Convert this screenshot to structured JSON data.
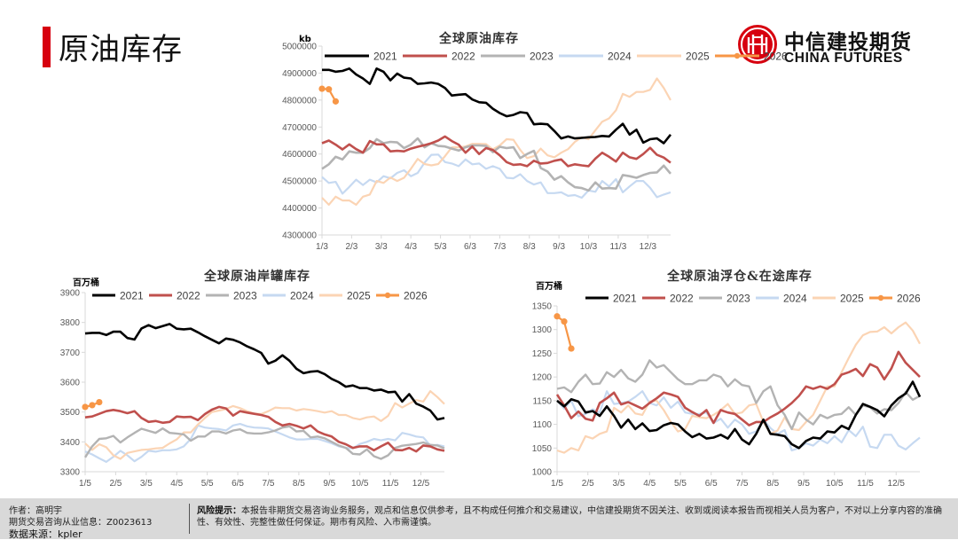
{
  "page": {
    "title": "原油库存"
  },
  "logo": {
    "name_cn": "中信建投期货",
    "name_en": "CHINA FUTURES",
    "icon": "citic-logo-icon",
    "brand_color": "#d7000f"
  },
  "series_colors": {
    "2021": "#000000",
    "2022": "#c0504d",
    "2023": "#b3b3b3",
    "2024": "#c6d9f1",
    "2025": "#fbd4b4",
    "2026": "#f79646"
  },
  "chart_data": [
    {
      "id": "global",
      "type": "line",
      "title": "全球原油库存",
      "ylabel": "kb",
      "xlabel": "",
      "ylim": [
        4300000,
        5000000
      ],
      "yticks": [
        "4300000",
        "4400000",
        "4500000",
        "4600000",
        "4700000",
        "4800000",
        "4900000",
        "5000000"
      ],
      "xticks": [
        "1/3",
        "2/3",
        "3/3",
        "4/3",
        "5/3",
        "6/3",
        "7/3",
        "8/3",
        "9/3",
        "10/3",
        "11/3",
        "12/3"
      ],
      "legend": [
        "2021",
        "2022",
        "2023",
        "2024",
        "2025",
        "2026"
      ],
      "legend_position": "top",
      "grid": false,
      "points_per_year": 52,
      "series": [
        {
          "name": "2021",
          "values": [
            4912000,
            4912000,
            4905000,
            4908000,
            4917000,
            4895000,
            4880000,
            4860000,
            4917000,
            4905000,
            4873000,
            4898000,
            4883000,
            4880000,
            4860000,
            4862000,
            4865000,
            4860000,
            4845000,
            4817000,
            4820000,
            4822000,
            4802000,
            4792000,
            4790000,
            4768000,
            4752000,
            4740000,
            4745000,
            4755000,
            4752000,
            4710000,
            4712000,
            4710000,
            4685000,
            4658000,
            4665000,
            4658000,
            4660000,
            4662000,
            4663000,
            4667000,
            4665000,
            4690000,
            4712000,
            4672000,
            4690000,
            4642000,
            4655000,
            4658000,
            4640000,
            4672000
          ]
        },
        {
          "name": "2022",
          "values": [
            4640000,
            4650000,
            4635000,
            4617000,
            4636000,
            4618000,
            4605000,
            4648000,
            4636000,
            4636000,
            4610000,
            4612000,
            4610000,
            4620000,
            4627000,
            4633000,
            4640000,
            4650000,
            4665000,
            4648000,
            4635000,
            4605000,
            4628000,
            4600000,
            4622000,
            4615000,
            4595000,
            4570000,
            4560000,
            4562000,
            4555000,
            4575000,
            4565000,
            4567000,
            4575000,
            4580000,
            4555000,
            4562000,
            4558000,
            4555000,
            4583000,
            4605000,
            4590000,
            4572000,
            4605000,
            4588000,
            4582000,
            4600000,
            4623000,
            4597000,
            4587000,
            4568000
          ]
        },
        {
          "name": "2023",
          "values": [
            4545000,
            4562000,
            4590000,
            4580000,
            4610000,
            4605000,
            4605000,
            4622000,
            4655000,
            4640000,
            4645000,
            4643000,
            4622000,
            4635000,
            4658000,
            4625000,
            4640000,
            4630000,
            4628000,
            4620000,
            4613000,
            4625000,
            4632000,
            4632000,
            4630000,
            4607000,
            4627000,
            4622000,
            4625000,
            4585000,
            4600000,
            4612000,
            4548000,
            4535000,
            4505000,
            4518000,
            4495000,
            4477000,
            4474000,
            4465000,
            4495000,
            4472000,
            4474000,
            4472000,
            4522000,
            4518000,
            4512000,
            4522000,
            4530000,
            4532000,
            4557000,
            4527000
          ]
        },
        {
          "name": "2024",
          "values": [
            4515000,
            4493000,
            4497000,
            4453000,
            4478000,
            4505000,
            4485000,
            4505000,
            4495000,
            4518000,
            4510000,
            4530000,
            4540000,
            4518000,
            4530000,
            4568000,
            4597000,
            4598000,
            4570000,
            4565000,
            4555000,
            4580000,
            4562000,
            4565000,
            4545000,
            4555000,
            4545000,
            4512000,
            4510000,
            4525000,
            4500000,
            4487000,
            4495000,
            4455000,
            4455000,
            4458000,
            4445000,
            4448000,
            4438000,
            4465000,
            4460000,
            4500000,
            4480000,
            4507000,
            4458000,
            4480000,
            4500000,
            4500000,
            4475000,
            4440000,
            4450000,
            4458000
          ]
        },
        {
          "name": "2025",
          "values": [
            4438000,
            4412000,
            4442000,
            4428000,
            4428000,
            4412000,
            4442000,
            4450000,
            4500000,
            4493000,
            4513000,
            4500000,
            4512000,
            4545000,
            4582000,
            4563000,
            4558000,
            4563000,
            4592000,
            4625000,
            4625000,
            4628000,
            4638000,
            4638000,
            4637000,
            4617000,
            4632000,
            4655000,
            4653000,
            4615000,
            4585000,
            4592000,
            4620000,
            4595000,
            4588000,
            4605000,
            4618000,
            4645000,
            4662000,
            4655000,
            4688000,
            4720000,
            4732000,
            4762000,
            4823000,
            4812000,
            4830000,
            4830000,
            4838000,
            4880000,
            4845000,
            4800000
          ]
        },
        {
          "name": "2026",
          "values": [
            4842000,
            4840000,
            4795000
          ]
        }
      ]
    },
    {
      "id": "onshore",
      "type": "line",
      "title": "全球原油岸罐库存",
      "ylabel": "百万桶",
      "xlabel": "",
      "ylim": [
        3300,
        3900
      ],
      "yticks": [
        "3300",
        "3400",
        "3500",
        "3600",
        "3700",
        "3800",
        "3900"
      ],
      "xticks": [
        "1/5",
        "2/5",
        "3/5",
        "4/5",
        "5/5",
        "6/5",
        "7/5",
        "8/5",
        "9/5",
        "10/5",
        "11/5",
        "12/5"
      ],
      "legend": [
        "2021",
        "2022",
        "2023",
        "2024",
        "2025",
        "2026"
      ],
      "legend_position": "top",
      "grid": false,
      "points_per_year": 52,
      "series": [
        {
          "name": "2021",
          "values": [
            3763,
            3765,
            3765,
            3758,
            3769,
            3769,
            3748,
            3743,
            3780,
            3791,
            3781,
            3788,
            3795,
            3779,
            3777,
            3779,
            3767,
            3754,
            3742,
            3730,
            3746,
            3742,
            3733,
            3720,
            3710,
            3698,
            3662,
            3672,
            3690,
            3672,
            3645,
            3630,
            3635,
            3637,
            3627,
            3611,
            3600,
            3585,
            3589,
            3580,
            3580,
            3572,
            3575,
            3566,
            3568,
            3535,
            3560,
            3528,
            3518,
            3505,
            3475,
            3480
          ]
        },
        {
          "name": "2022",
          "values": [
            3482,
            3485,
            3494,
            3503,
            3507,
            3503,
            3496,
            3503,
            3480,
            3467,
            3470,
            3464,
            3467,
            3485,
            3483,
            3484,
            3473,
            3493,
            3508,
            3517,
            3512,
            3488,
            3503,
            3498,
            3494,
            3490,
            3484,
            3467,
            3455,
            3460,
            3454,
            3445,
            3455,
            3435,
            3425,
            3418,
            3400,
            3392,
            3380,
            3385,
            3385,
            3372,
            3385,
            3397,
            3373,
            3372,
            3380,
            3368,
            3388,
            3385,
            3375,
            3370
          ]
        },
        {
          "name": "2023",
          "values": [
            3348,
            3385,
            3410,
            3412,
            3420,
            3398,
            3415,
            3430,
            3444,
            3437,
            3430,
            3445,
            3430,
            3428,
            3425,
            3404,
            3418,
            3418,
            3435,
            3435,
            3428,
            3438,
            3442,
            3430,
            3428,
            3428,
            3432,
            3438,
            3448,
            3452,
            3435,
            3437,
            3415,
            3418,
            3412,
            3400,
            3388,
            3380,
            3360,
            3358,
            3375,
            3352,
            3343,
            3355,
            3380,
            3387,
            3390,
            3393,
            3398,
            3390,
            3388,
            3378
          ]
        },
        {
          "name": "2024",
          "values": [
            3368,
            3358,
            3345,
            3333,
            3350,
            3370,
            3355,
            3335,
            3350,
            3370,
            3367,
            3372,
            3372,
            3375,
            3385,
            3410,
            3455,
            3448,
            3445,
            3443,
            3438,
            3455,
            3460,
            3452,
            3448,
            3447,
            3445,
            3435,
            3425,
            3415,
            3408,
            3408,
            3410,
            3410,
            3403,
            3395,
            3385,
            3380,
            3378,
            3393,
            3400,
            3410,
            3405,
            3410,
            3405,
            3430,
            3425,
            3418,
            3415,
            3388,
            3390,
            3385
          ]
        },
        {
          "name": "2025",
          "values": [
            3395,
            3373,
            3392,
            3382,
            3355,
            3343,
            3363,
            3368,
            3373,
            3375,
            3378,
            3380,
            3395,
            3408,
            3432,
            3432,
            3458,
            3480,
            3500,
            3505,
            3510,
            3520,
            3513,
            3503,
            3495,
            3493,
            3503,
            3515,
            3513,
            3513,
            3505,
            3510,
            3507,
            3503,
            3498,
            3503,
            3490,
            3490,
            3480,
            3475,
            3482,
            3485,
            3470,
            3487,
            3530,
            3515,
            3528,
            3540,
            3535,
            3570,
            3550,
            3527
          ]
        },
        {
          "name": "2026",
          "values": [
            3517,
            3523,
            3533
          ]
        }
      ]
    },
    {
      "id": "floating",
      "type": "line",
      "title": "全球原油浮仓&在途库存",
      "ylabel": "百万桶",
      "xlabel": "",
      "ylim": [
        1000,
        1350
      ],
      "yticks": [
        "1000",
        "1050",
        "1100",
        "1150",
        "1200",
        "1250",
        "1300",
        "1350"
      ],
      "xticks": [
        "1/5",
        "2/5",
        "3/5",
        "4/5",
        "5/5",
        "6/5",
        "7/5",
        "8/5",
        "9/5",
        "10/5",
        "11/5",
        "12/5"
      ],
      "legend": [
        "2021",
        "2022",
        "2023",
        "2024",
        "2025",
        "2026"
      ],
      "legend_position": "top",
      "grid": false,
      "points_per_year": 52,
      "series": [
        {
          "name": "2021",
          "values": [
            1150,
            1138,
            1153,
            1148,
            1125,
            1128,
            1118,
            1138,
            1118,
            1093,
            1110,
            1090,
            1102,
            1086,
            1088,
            1098,
            1103,
            1100,
            1085,
            1073,
            1080,
            1070,
            1072,
            1078,
            1070,
            1090,
            1068,
            1058,
            1080,
            1110,
            1080,
            1078,
            1075,
            1058,
            1050,
            1065,
            1072,
            1070,
            1085,
            1083,
            1097,
            1090,
            1120,
            1143,
            1137,
            1130,
            1117,
            1140,
            1155,
            1165,
            1190,
            1158
          ]
        },
        {
          "name": "2022",
          "values": [
            1163,
            1140,
            1113,
            1127,
            1112,
            1108,
            1145,
            1155,
            1167,
            1142,
            1147,
            1140,
            1133,
            1145,
            1155,
            1167,
            1163,
            1158,
            1135,
            1126,
            1118,
            1130,
            1103,
            1130,
            1125,
            1122,
            1110,
            1098,
            1105,
            1105,
            1115,
            1123,
            1133,
            1145,
            1160,
            1180,
            1175,
            1180,
            1175,
            1185,
            1205,
            1210,
            1217,
            1202,
            1227,
            1220,
            1195,
            1218,
            1253,
            1230,
            1215,
            1200
          ]
        },
        {
          "name": "2023",
          "values": [
            1175,
            1178,
            1168,
            1190,
            1205,
            1185,
            1186,
            1210,
            1200,
            1215,
            1197,
            1190,
            1205,
            1235,
            1220,
            1225,
            1210,
            1195,
            1185,
            1185,
            1193,
            1193,
            1205,
            1200,
            1180,
            1195,
            1183,
            1180,
            1145,
            1170,
            1180,
            1140,
            1120,
            1090,
            1125,
            1110,
            1100,
            1120,
            1113,
            1120,
            1122,
            1136,
            1120,
            1140,
            1136,
            1123,
            1132,
            1130,
            1145,
            1168,
            1152,
            1160
          ]
        },
        {
          "name": "2024",
          "values": [
            1150,
            1133,
            1150,
            1117,
            1122,
            1132,
            1125,
            1170,
            1143,
            1145,
            1148,
            1158,
            1170,
            1145,
            1140,
            1157,
            1135,
            1148,
            1125,
            1122,
            1122,
            1125,
            1103,
            1112,
            1093,
            1110,
            1100,
            1080,
            1085,
            1110,
            1092,
            1080,
            1088,
            1045,
            1050,
            1060,
            1055,
            1068,
            1060,
            1075,
            1062,
            1088,
            1075,
            1095,
            1053,
            1050,
            1078,
            1078,
            1055,
            1047,
            1060,
            1072
          ]
        },
        {
          "name": "2025",
          "values": [
            1045,
            1040,
            1050,
            1045,
            1075,
            1070,
            1080,
            1085,
            1135,
            1125,
            1140,
            1123,
            1120,
            1148,
            1150,
            1130,
            1105,
            1085,
            1090,
            1118,
            1115,
            1113,
            1120,
            1130,
            1143,
            1122,
            1125,
            1140,
            1143,
            1105,
            1080,
            1087,
            1115,
            1090,
            1088,
            1105,
            1120,
            1150,
            1180,
            1180,
            1210,
            1240,
            1268,
            1288,
            1295,
            1296,
            1305,
            1292,
            1305,
            1315,
            1298,
            1270
          ]
        },
        {
          "name": "2026",
          "values": [
            1328,
            1317,
            1260
          ]
        }
      ]
    }
  ],
  "footer": {
    "author_label": "作者：高明宇",
    "license_label": "期货交易咨询从业信息：Z0023613",
    "source_label": "数据来源：kpler",
    "risk_title": "风险提示：",
    "risk_text": "本报告非期货交易咨询业务服务，观点和信息仅供参考，且不构成任何推介和交易建议，中信建投期货不因关注、收到或阅读本报告而视相关人员为客户，不对以上分享内容的准确性、有效性、完整性做任何保证。期市有风险、入市需谨慎。"
  }
}
